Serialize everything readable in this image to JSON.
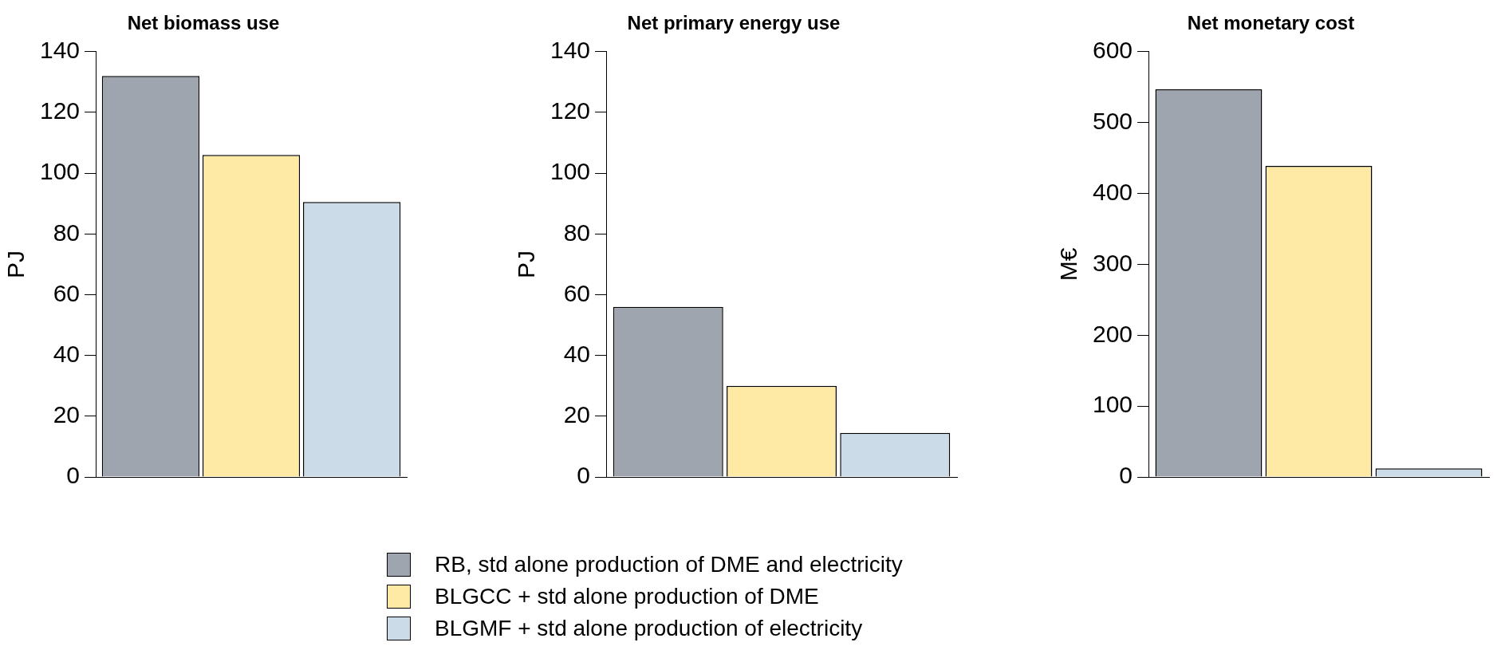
{
  "chart_data": [
    {
      "type": "bar",
      "title": "Net biomass use",
      "ylabel": "PJ",
      "categories": [
        null
      ],
      "ylim": [
        0,
        140
      ],
      "yticks": [
        0,
        20,
        40,
        60,
        80,
        100,
        120,
        140
      ],
      "grid": false,
      "legend": "bottom",
      "series": [
        {
          "name": "RB, std alone production of DME and electricity",
          "color": "#9ea5ae",
          "values": [
            132
          ]
        },
        {
          "name": "BLGCC + std alone production of DME",
          "color": "#feeaa5",
          "values": [
            106
          ]
        },
        {
          "name": "BLGMF + std alone production of electricity",
          "color": "#cbdbe8",
          "values": [
            90.5
          ]
        }
      ]
    },
    {
      "type": "bar",
      "title": "Net primary energy use",
      "ylabel": "PJ",
      "categories": [
        null
      ],
      "ylim": [
        0,
        140
      ],
      "yticks": [
        0,
        20,
        40,
        60,
        80,
        100,
        120,
        140
      ],
      "grid": false,
      "series": [
        {
          "color": "#9ea5ae",
          "values": [
            56
          ]
        },
        {
          "color": "#feeaa5",
          "values": [
            30
          ]
        },
        {
          "color": "#cbdbe8",
          "values": [
            14.5
          ]
        }
      ]
    },
    {
      "type": "bar",
      "title": "Net monetary cost",
      "ylabel": "M€",
      "categories": [
        null
      ],
      "ylim": [
        0,
        600
      ],
      "yticks": [
        0,
        100,
        200,
        300,
        400,
        500,
        600
      ],
      "grid": false,
      "series": [
        {
          "color": "#9ea5ae",
          "values": [
            547
          ]
        },
        {
          "color": "#feeaa5",
          "values": [
            439
          ]
        },
        {
          "color": "#cbdbe8",
          "values": [
            12
          ]
        }
      ]
    }
  ]
}
